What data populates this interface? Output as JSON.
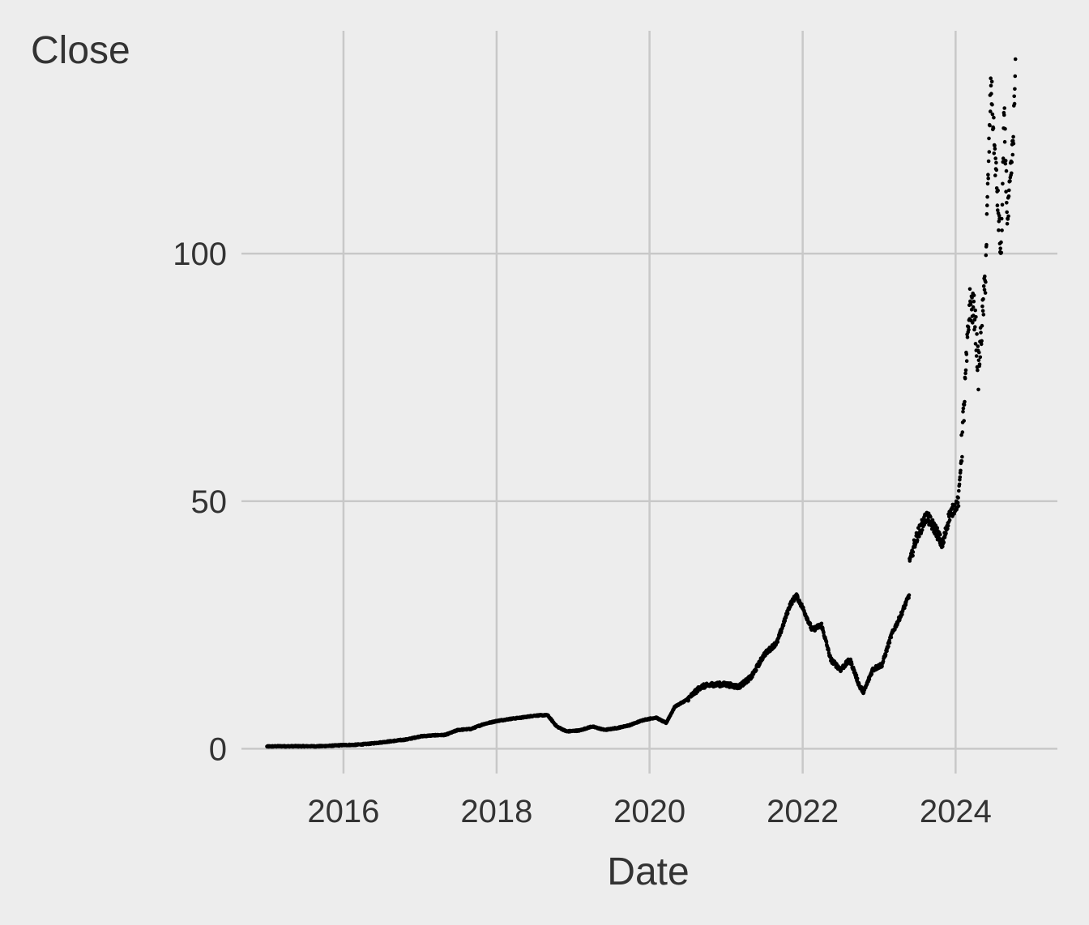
{
  "chart_data": {
    "type": "scatter",
    "title": "",
    "xlabel": "Date",
    "ylabel": "Close",
    "xlim": [
      "2014-09-01",
      "2025-05-01"
    ],
    "ylim": [
      -5,
      145
    ],
    "grid": true,
    "legend": "none",
    "point_color": "#000000",
    "x_ticks": [
      {
        "date": "2016-01-01",
        "label": "2016"
      },
      {
        "date": "2018-01-01",
        "label": "2018"
      },
      {
        "date": "2020-01-01",
        "label": "2020"
      },
      {
        "date": "2022-01-01",
        "label": "2022"
      },
      {
        "date": "2024-01-01",
        "label": "2024"
      }
    ],
    "y_ticks": [
      {
        "value": 0,
        "label": "0"
      },
      {
        "value": 50,
        "label": "50"
      },
      {
        "value": 100,
        "label": "100"
      }
    ],
    "series": [
      {
        "points": [
          [
            "2015-01-01",
            0.45
          ],
          [
            "2015-03-01",
            0.5
          ],
          [
            "2015-05-01",
            0.5
          ],
          [
            "2015-07-01",
            0.5
          ],
          [
            "2015-09-01",
            0.5
          ],
          [
            "2015-11-01",
            0.6
          ],
          [
            "2016-01-01",
            0.75
          ],
          [
            "2016-03-01",
            0.8
          ],
          [
            "2016-05-01",
            1.0
          ],
          [
            "2016-07-01",
            1.3
          ],
          [
            "2016-09-01",
            1.6
          ],
          [
            "2016-11-01",
            1.9
          ],
          [
            "2017-01-01",
            2.5
          ],
          [
            "2017-03-01",
            2.7
          ],
          [
            "2017-05-01",
            2.8
          ],
          [
            "2017-07-01",
            3.8
          ],
          [
            "2017-09-01",
            4.0
          ],
          [
            "2017-11-01",
            5.0
          ],
          [
            "2018-01-01",
            5.6
          ],
          [
            "2018-03-01",
            6.0
          ],
          [
            "2018-05-01",
            6.3
          ],
          [
            "2018-07-01",
            6.7
          ],
          [
            "2018-09-01",
            6.8
          ],
          [
            "2018-10-15",
            4.5
          ],
          [
            "2018-12-01",
            3.5
          ],
          [
            "2019-02-01",
            3.7
          ],
          [
            "2019-04-01",
            4.5
          ],
          [
            "2019-06-01",
            3.8
          ],
          [
            "2019-08-01",
            4.2
          ],
          [
            "2019-10-01",
            4.8
          ],
          [
            "2019-12-01",
            5.8
          ],
          [
            "2020-02-01",
            6.3
          ],
          [
            "2020-03-20",
            5.2
          ],
          [
            "2020-05-01",
            8.5
          ],
          [
            "2020-07-01",
            10.0
          ],
          [
            "2020-09-01",
            12.5
          ],
          [
            "2020-11-01",
            13.0
          ],
          [
            "2021-01-01",
            13.0
          ],
          [
            "2021-03-01",
            12.5
          ],
          [
            "2021-05-01",
            14.5
          ],
          [
            "2021-07-01",
            19.0
          ],
          [
            "2021-09-01",
            21.5
          ],
          [
            "2021-11-01",
            29.0
          ],
          [
            "2021-12-01",
            31.0
          ],
          [
            "2022-01-01",
            28.5
          ],
          [
            "2022-02-15",
            24.0
          ],
          [
            "2022-04-01",
            25.0
          ],
          [
            "2022-05-15",
            18.0
          ],
          [
            "2022-07-01",
            16.0
          ],
          [
            "2022-08-15",
            18.0
          ],
          [
            "2022-10-01",
            12.5
          ],
          [
            "2022-10-20",
            11.5
          ],
          [
            "2022-12-01",
            16.0
          ],
          [
            "2023-01-15",
            17.0
          ],
          [
            "2023-03-01",
            23.0
          ],
          [
            "2023-04-15",
            27.0
          ],
          [
            "2023-05-24",
            31.0
          ],
          [
            "2023-05-26",
            38.0
          ],
          [
            "2023-07-01",
            43.0
          ],
          [
            "2023-08-15",
            47.0
          ],
          [
            "2023-10-01",
            44.0
          ],
          [
            "2023-10-31",
            41.0
          ],
          [
            "2023-12-01",
            47.0
          ],
          [
            "2024-01-15",
            50.0
          ],
          [
            "2024-02-01",
            62.0
          ],
          [
            "2024-02-22",
            78.0
          ],
          [
            "2024-03-08",
            90.0
          ],
          [
            "2024-04-01",
            88.0
          ],
          [
            "2024-04-19",
            76.0
          ],
          [
            "2024-05-22",
            95.0
          ],
          [
            "2024-06-01",
            110.0
          ],
          [
            "2024-06-18",
            135.0
          ],
          [
            "2024-07-01",
            124.0
          ],
          [
            "2024-08-05",
            99.0
          ],
          [
            "2024-08-20",
            128.0
          ],
          [
            "2024-09-05",
            106.0
          ],
          [
            "2024-10-01",
            122.0
          ],
          [
            "2024-10-14",
            138.0
          ]
        ]
      }
    ]
  }
}
